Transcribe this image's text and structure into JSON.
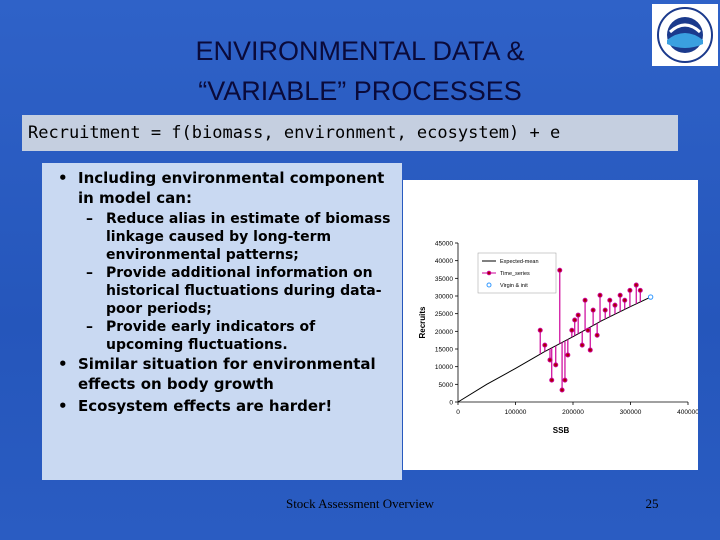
{
  "slide": {
    "title": [
      "ENVIRONMENTAL DATA &",
      "“VARIABLE” PROCESSES"
    ],
    "equation": "Recruitment = f(biomass, environment, ecosystem) + e",
    "bullets": [
      {
        "text": "Including environmental component in model can:",
        "sub": [
          "Reduce alias in estimate of biomass linkage caused by long-term environmental patterns;",
          "Provide additional information on historical fluctuations during data-poor periods;",
          "Provide early indicators of upcoming fluctuations."
        ]
      },
      {
        "text": "Similar situation for environmental effects on body growth",
        "sub": []
      },
      {
        "text": "Ecosystem effects are harder!",
        "sub": []
      }
    ],
    "footer": "Stock Assessment Overview",
    "page_number": 25
  },
  "chart_data": {
    "type": "scatter",
    "x_label": "SSB",
    "y_label": "Recruits",
    "xlim": [
      0,
      400000
    ],
    "xticks": [
      0,
      100000,
      200000,
      300000,
      400000
    ],
    "ylim": [
      0,
      45000
    ],
    "yticks": [
      0,
      5000,
      10000,
      15000,
      20000,
      25000,
      30000,
      35000,
      40000,
      45000
    ],
    "legend": "upper left",
    "series": [
      {
        "name": "Expected-mean",
        "color": "#000000",
        "style": "line",
        "x": [
          0,
          50000,
          100000,
          150000,
          200000,
          250000,
          300000,
          335000
        ],
        "values": [
          0,
          5000,
          9500,
          14200,
          18500,
          23000,
          27000,
          29700
        ]
      },
      {
        "name": "Time_series",
        "color": "#cc0099",
        "style": "residual",
        "x": [
          143000,
          151000,
          160000,
          163000,
          170000,
          177000,
          181000,
          186000,
          191000,
          198000,
          203000,
          209000,
          216000,
          221000,
          226000,
          230000,
          235000,
          242000,
          247000,
          256000,
          264000,
          273000,
          282000,
          290000,
          299000,
          310000,
          317000
        ],
        "values": [
          20300,
          16100,
          11900,
          6200,
          10500,
          37300,
          3400,
          6200,
          13300,
          20300,
          23200,
          24600,
          16100,
          28800,
          20300,
          14700,
          26000,
          18900,
          30200,
          26000,
          28800,
          27400,
          30200,
          28800,
          31600,
          33100,
          31600
        ]
      },
      {
        "name": "Virgin & init",
        "color": "#3399ff",
        "style": "open",
        "x": [
          335000
        ],
        "values": [
          29700
        ]
      }
    ]
  }
}
